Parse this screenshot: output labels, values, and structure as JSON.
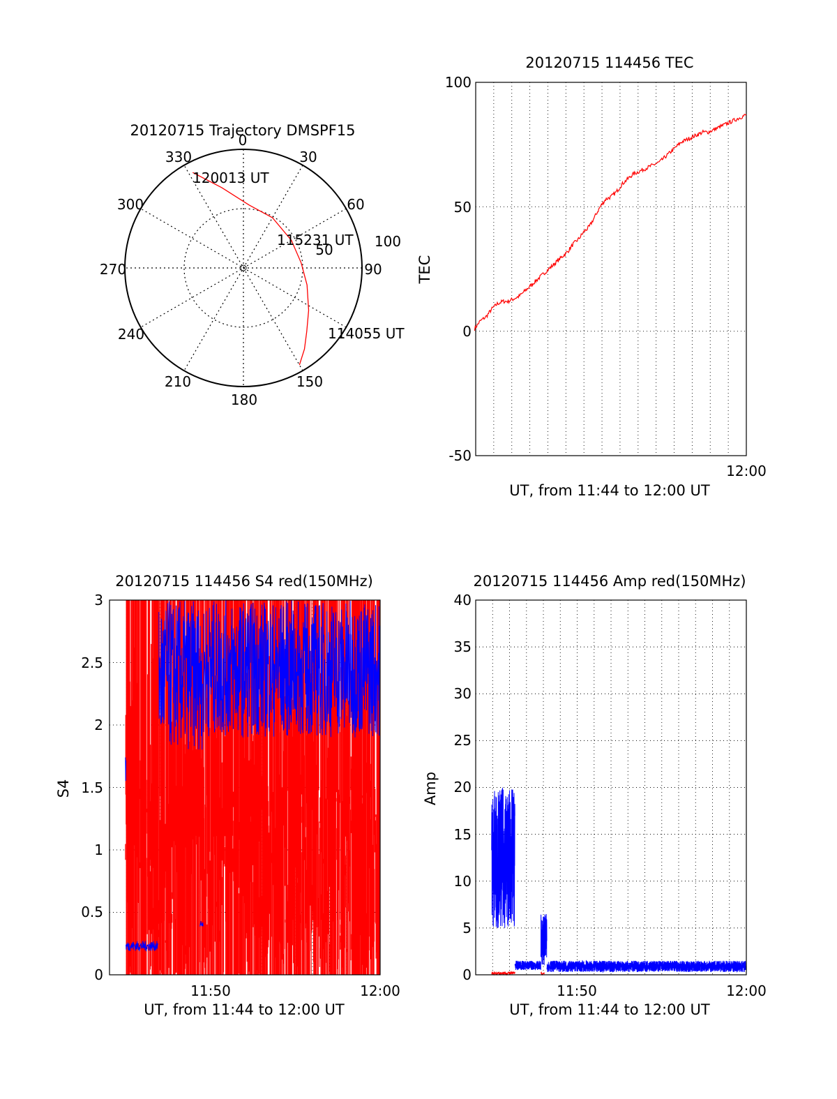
{
  "colors": {
    "red": "#ff0000",
    "blue": "#0000ff",
    "grid": "#000000",
    "background": "#ffffff"
  },
  "chart_data": [
    {
      "type": "polar",
      "title": "20120715 Trajectory DMSPF15",
      "angle_ticks": [
        "0",
        "30",
        "60",
        "90",
        "150",
        "180",
        "210",
        "240",
        "270",
        "300",
        "330"
      ],
      "radial_ticks": [
        "50",
        "100"
      ],
      "series": [
        {
          "color": "#ff0000",
          "points": [
            {
              "az": 150,
              "el": 5
            },
            {
              "az": 143,
              "el": 13
            },
            {
              "az": 135,
              "el": 22
            },
            {
              "az": 123,
              "el": 31
            },
            {
              "az": 105,
              "el": 40
            },
            {
              "az": 85,
              "el": 46
            },
            {
              "az": 60,
              "el": 48
            },
            {
              "az": 30,
              "el": 46
            },
            {
              "az": 5,
              "el": 42
            },
            {
              "az": -15,
              "el": 27
            },
            {
              "az": -28,
              "el": 8
            }
          ]
        }
      ],
      "annotations": [
        {
          "text": "114055 UT",
          "az": 150,
          "el": 5
        },
        {
          "text": "115231 UT",
          "az": 72,
          "el": 43
        },
        {
          "text": "120013 UT",
          "az": -28,
          "el": 8
        }
      ]
    },
    {
      "type": "line",
      "title": "20120715 114456 TEC",
      "xlabel": "UT, from 11:44 to 12:00 UT",
      "ylabel": "TEC",
      "xlim": [
        11.75,
        12.0
      ],
      "ylim": [
        -50,
        100
      ],
      "yticks": [
        "-50",
        "0",
        "50",
        "100"
      ],
      "xticks": [
        {
          "value": 12.0,
          "label": "12:00"
        }
      ],
      "grid": true,
      "series": [
        {
          "color": "#ff0000",
          "x": [
            11.749,
            11.754,
            11.76,
            11.765,
            11.77,
            11.775,
            11.78,
            11.785,
            11.79,
            11.795,
            11.8,
            11.805,
            11.81,
            11.815,
            11.82,
            11.825,
            11.83,
            11.835,
            11.84,
            11.845,
            11.85,
            11.855,
            11.86,
            11.865,
            11.87,
            11.875,
            11.88,
            11.885,
            11.89,
            11.895,
            11.9,
            11.905,
            11.91,
            11.915,
            11.92,
            11.925,
            11.93,
            11.935,
            11.94,
            11.945,
            11.95,
            11.955,
            11.96,
            11.965,
            11.97,
            11.975,
            11.98,
            11.985,
            11.99,
            11.995,
            12.0
          ],
          "y": [
            1,
            4,
            6,
            9,
            11,
            12,
            12,
            13,
            14,
            16,
            18,
            20,
            22,
            24,
            26,
            28,
            30,
            32,
            35,
            37,
            40,
            42,
            46,
            50,
            53,
            54,
            56,
            59,
            61,
            63,
            64,
            65,
            66,
            67,
            68,
            70,
            72,
            74,
            76,
            77,
            78,
            79,
            80,
            80,
            81,
            82,
            83,
            84,
            85,
            86,
            87
          ]
        }
      ]
    },
    {
      "type": "line",
      "title": "20120715 114456 S4 red(150MHz)",
      "xlabel": "UT, from 11:44 to 12:00 UT",
      "ylabel": "S4",
      "xlim": [
        11.7333,
        12.0
      ],
      "ylim": [
        0,
        3
      ],
      "yticks": [
        "0",
        "0.5",
        "1",
        "1.5",
        "2",
        "2.5",
        "3"
      ],
      "xticks": [
        {
          "value": 11.8333,
          "label": "11:50"
        },
        {
          "value": 12.0,
          "label": "12:00"
        }
      ],
      "grid": true,
      "series": [
        {
          "color": "#ff0000",
          "noise": {
            "x_start": 11.749,
            "x_end": 11.9995,
            "min": 0,
            "max": 3,
            "density": 900
          }
        },
        {
          "color": "#0000ff",
          "segments": [
            {
              "x_start": 11.749,
              "x_end": 11.7495,
              "min": 1.5,
              "max": 1.85
            },
            {
              "x_start": 11.7495,
              "x_end": 11.781,
              "min": 0.19,
              "max": 0.27
            },
            {
              "x_start": 11.782,
              "x_end": 11.825,
              "min": 1.8,
              "max": 3.0
            },
            {
              "x_start": 11.8225,
              "x_end": 11.8255,
              "min": 0.38,
              "max": 0.43
            },
            {
              "x_start": 11.826,
              "x_end": 11.9995,
              "min": 1.9,
              "max": 3.0
            }
          ]
        }
      ]
    },
    {
      "type": "line",
      "title": "20120715 114456 Amp red(150MHz)",
      "xlabel": "UT, from 11:44 to 12:00 UT",
      "ylabel": "Amp",
      "xlim": [
        11.7333,
        12.0
      ],
      "ylim": [
        0,
        40
      ],
      "yticks": [
        "0",
        "5",
        "10",
        "15",
        "20",
        "25",
        "30",
        "35",
        "40"
      ],
      "xticks": [
        {
          "value": 11.8333,
          "label": "11:50"
        },
        {
          "value": 12.0,
          "label": "12:00"
        }
      ],
      "grid": true,
      "series": [
        {
          "color": "#0000ff",
          "segments": [
            {
              "x_start": 11.749,
              "x_end": 11.772,
              "min": 5,
              "max": 20
            },
            {
              "x_start": 11.772,
              "x_end": 11.7975,
              "min": 0.5,
              "max": 1.5
            },
            {
              "x_start": 11.7975,
              "x_end": 11.8035,
              "min": 1,
              "max": 6.5
            },
            {
              "x_start": 11.8035,
              "x_end": 12.0,
              "min": 0.3,
              "max": 1.5
            }
          ]
        },
        {
          "color": "#ff0000",
          "segments": [
            {
              "x_start": 11.749,
              "x_end": 11.772,
              "min": 0,
              "max": 0.35
            },
            {
              "x_start": 11.7975,
              "x_end": 11.801,
              "min": 0,
              "max": 0.3
            }
          ]
        }
      ]
    }
  ]
}
